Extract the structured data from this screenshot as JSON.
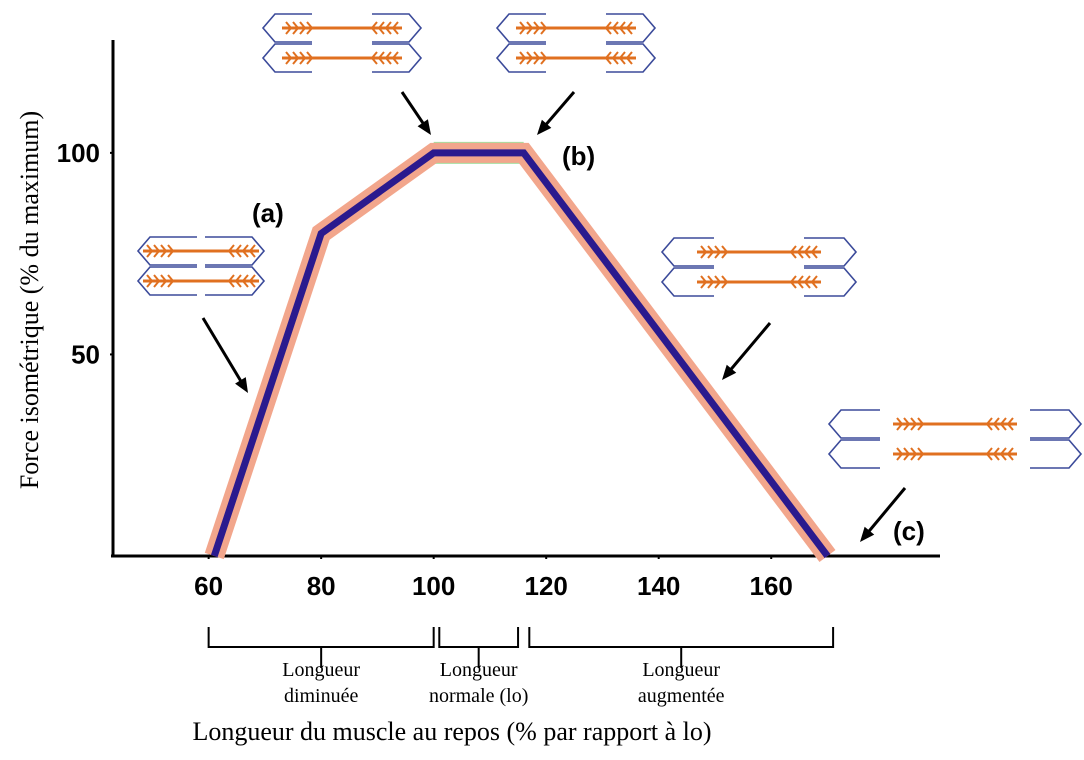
{
  "chart_data": {
    "type": "line",
    "x_label": "Longueur du muscle au repos (% par rapport à lo)",
    "y_label": "Force isométrique (% du maximum)",
    "x": [
      61,
      80,
      100,
      116,
      170
    ],
    "series": [
      {
        "color": "#2a1a8e",
        "values": [
          0,
          80,
          100,
          100,
          0
        ]
      }
    ],
    "halo_color": "#f2a68c",
    "plateau_color": "#a6dea0",
    "xlim": [
      43,
      190
    ],
    "ylim": [
      0,
      128
    ],
    "xticks": [
      60,
      80,
      100,
      120,
      140,
      160
    ],
    "yticks": [
      50,
      100
    ],
    "annotations": [
      "(a)",
      "(b)",
      "(c)"
    ],
    "regions": [
      {
        "label": [
          "Longueur",
          "diminuée"
        ],
        "from": 60,
        "to": 100
      },
      {
        "label": [
          "Longueur",
          "normale (lo)"
        ],
        "from": 101,
        "to": 115
      },
      {
        "label": [
          "Longueur",
          "augmentée"
        ],
        "from": 117,
        "to": 171
      }
    ]
  }
}
